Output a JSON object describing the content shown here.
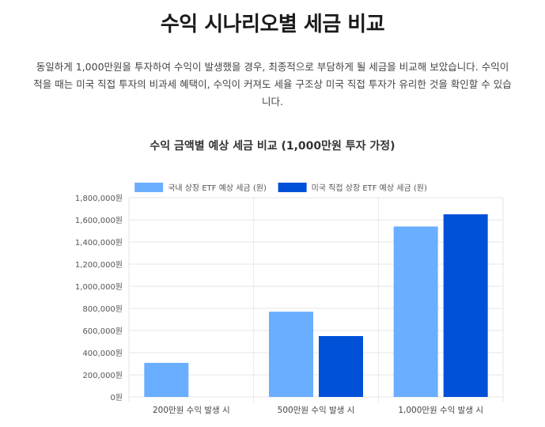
{
  "page": {
    "title": "수익 시나리오별 세금 비교",
    "description": "동일하게 1,000만원을 투자하여 수익이 발생했을 경우, 최종적으로 부담하게 될 세금을 비교해 보았습니다. 수익이 적을 때는 미국 직접 투자의 비과세 혜택이, 수익이 커져도 세율 구조상 미국 직접 투자가 유리한 것을 확인할 수 있습니다."
  },
  "colors": {
    "domestic": "#6aaeff",
    "us": "#0050d8",
    "grid": "#e6e6e6",
    "tick_text": "#555555"
  },
  "chart_data": {
    "type": "bar",
    "title": "수익 금액별 예상 세금 비교 (1,000만원 투자 가정)",
    "categories": [
      "200만원 수익 발생 시",
      "500만원 수익 발생 시",
      "1,000만원 수익 발생 시"
    ],
    "series": [
      {
        "name": "국내 상장 ETF 예상 세금 (원)",
        "values": [
          308000,
          770000,
          1540000
        ],
        "color": "#6aaeff"
      },
      {
        "name": "미국 직접 상장 ETF 예상 세금 (원)",
        "values": [
          0,
          550000,
          1650000
        ],
        "color": "#0050d8"
      }
    ],
    "ylim": [
      0,
      1800000
    ],
    "yticks": [
      "0원",
      "200,000원",
      "400,000원",
      "600,000원",
      "800,000원",
      "1,000,000원",
      "1,200,000원",
      "1,400,000원",
      "1,600,000원",
      "1,800,000원"
    ],
    "legend_position": "top",
    "grid": true
  }
}
